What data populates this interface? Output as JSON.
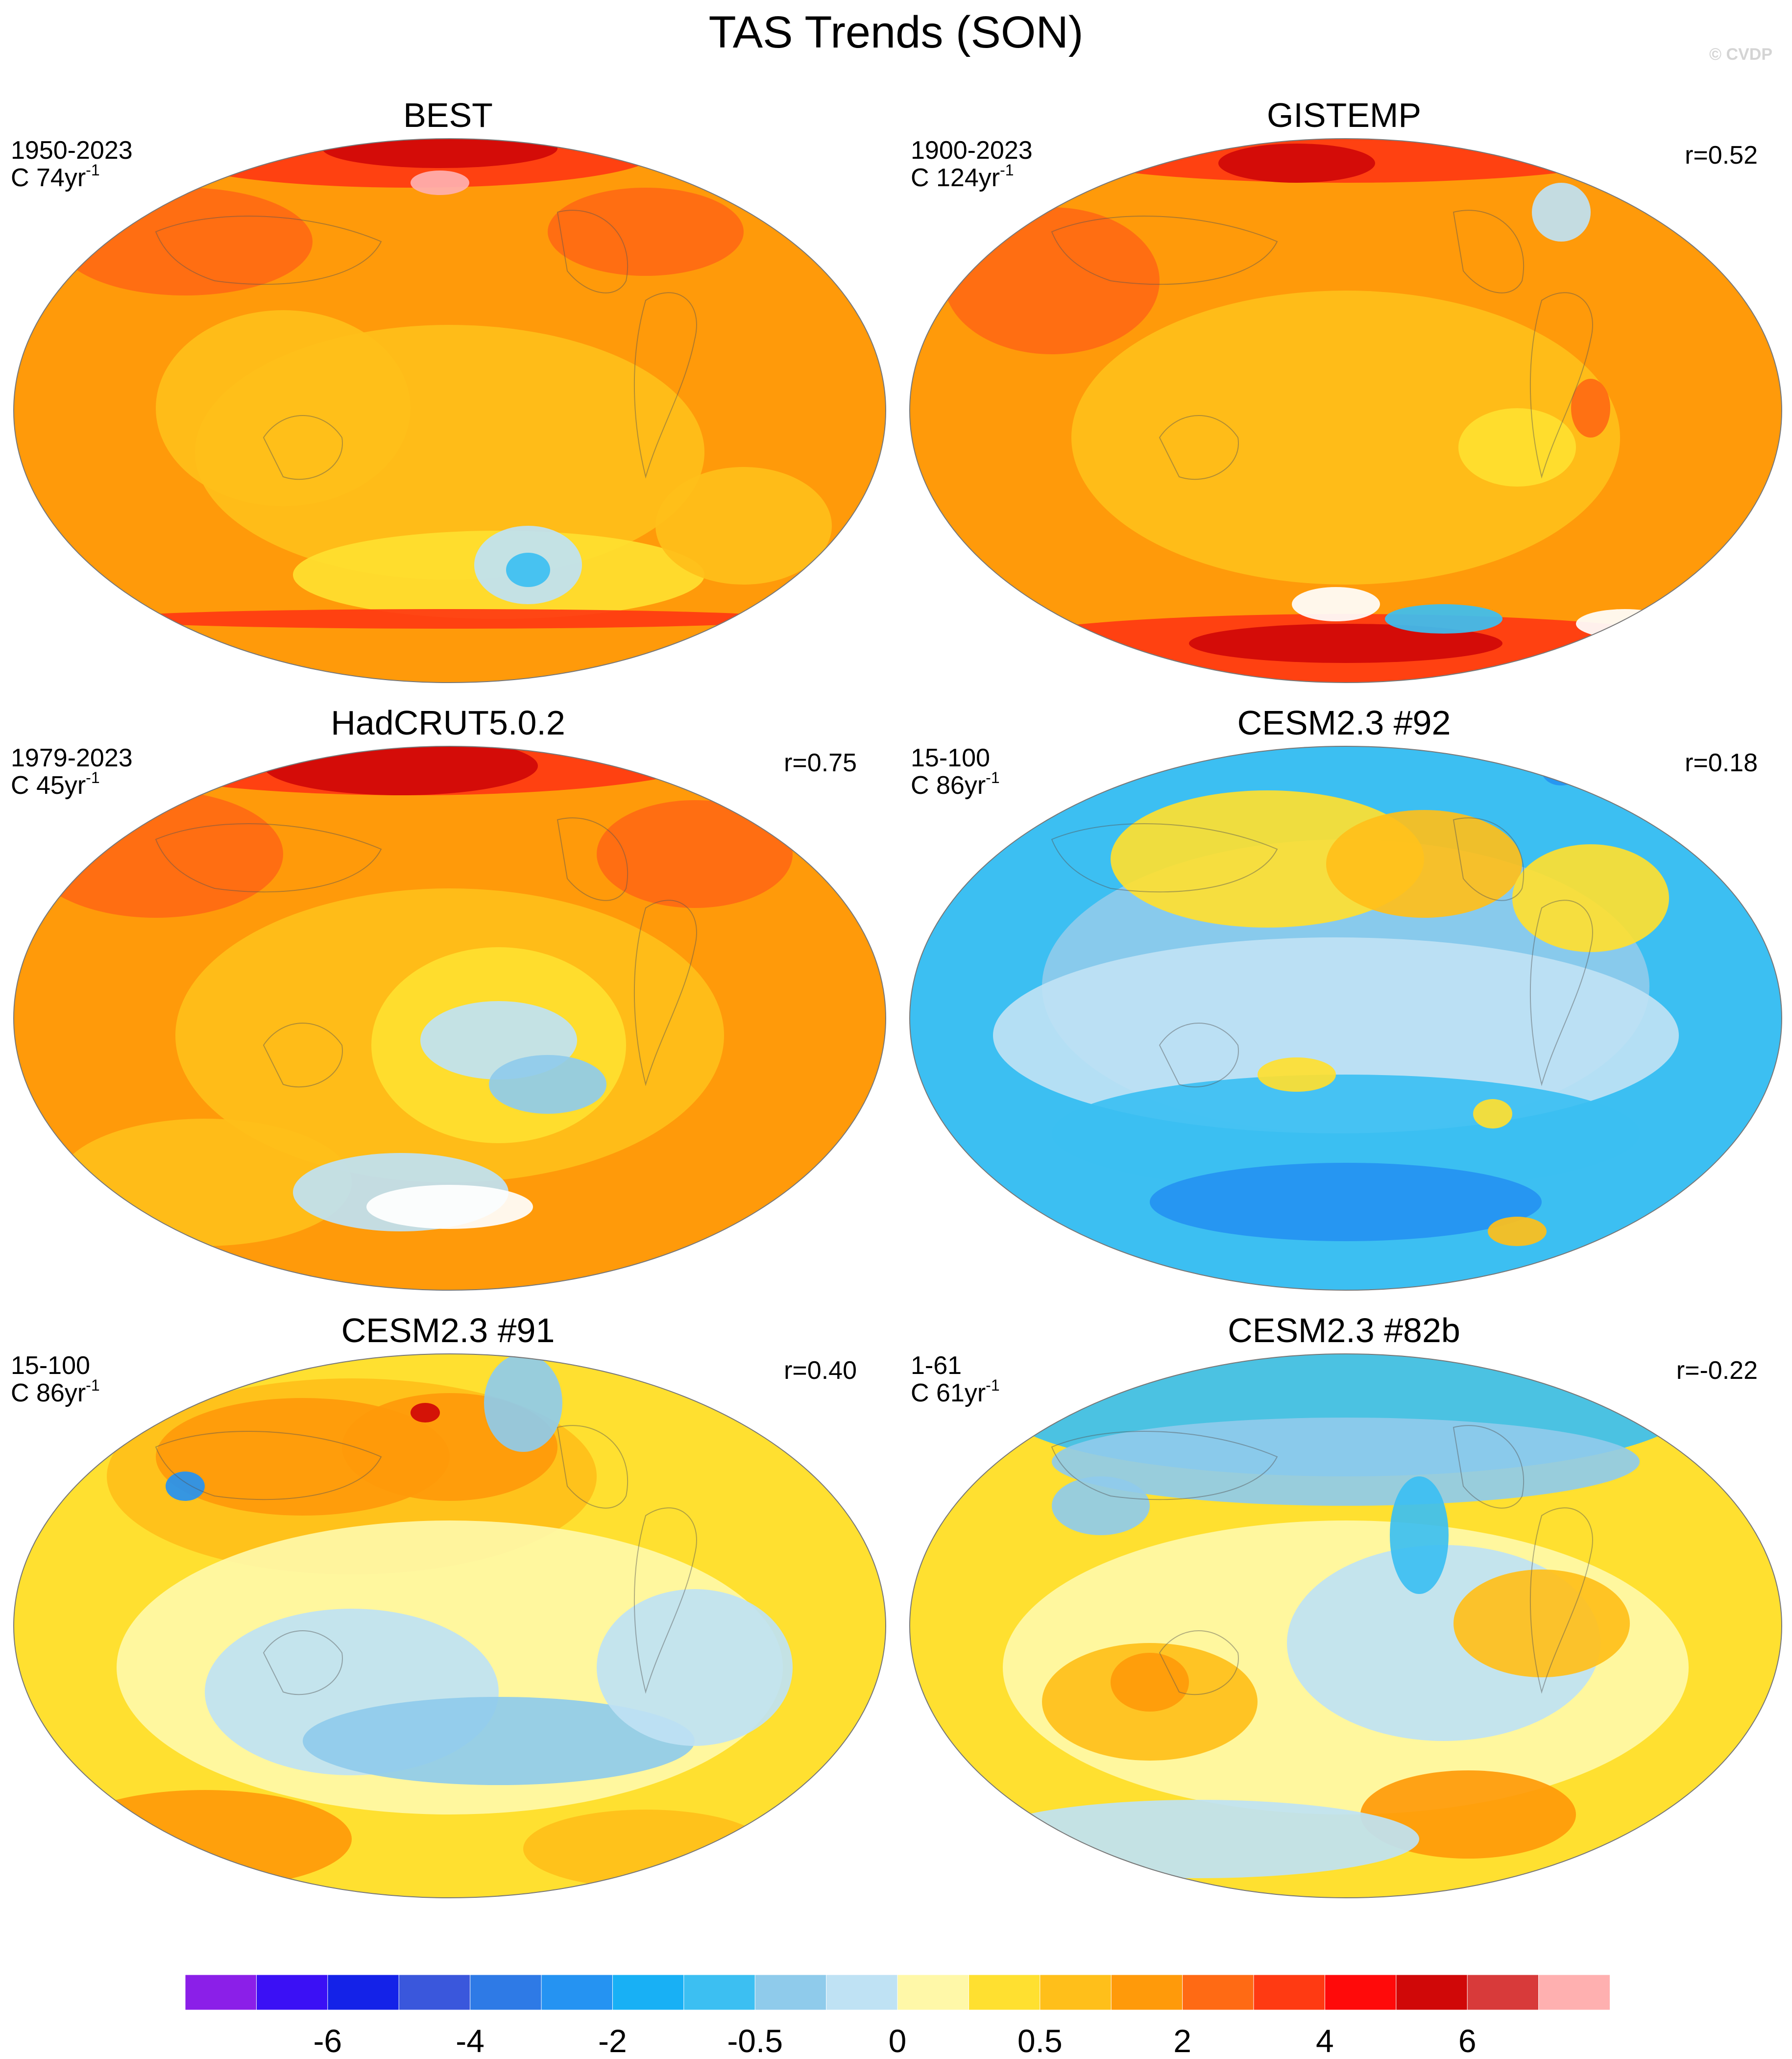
{
  "title": "TAS Trends (SON)",
  "copyright": "© CVDP",
  "panels": [
    {
      "title": "BEST",
      "period": "1950-2023",
      "units_prefix": "C 74yr",
      "units_exp": "-1",
      "corr": "",
      "scheme": "best"
    },
    {
      "title": "GISTEMP",
      "period": "1900-2023",
      "units_prefix": "C 124yr",
      "units_exp": "-1",
      "corr": "r=0.52",
      "scheme": "gistemp"
    },
    {
      "title": "HadCRUT5.0.2",
      "period": "1979-2023",
      "units_prefix": "C 45yr",
      "units_exp": "-1",
      "corr": "r=0.75",
      "scheme": "hadcrut"
    },
    {
      "title": "CESM2.3 #92",
      "period": "15-100",
      "units_prefix": "C 86yr",
      "units_exp": "-1",
      "corr": "r=0.18",
      "scheme": "cesm92"
    },
    {
      "title": "CESM2.3 #91",
      "period": "15-100",
      "units_prefix": "C 86yr",
      "units_exp": "-1",
      "corr": "r=0.40",
      "scheme": "cesm91"
    },
    {
      "title": "CESM2.3 #82b",
      "period": "1-61",
      "units_prefix": "C 61yr",
      "units_exp": "-1",
      "corr": "r=-0.22",
      "scheme": "cesm82b"
    }
  ],
  "colorbar": {
    "colors": [
      "#8b1fe8",
      "#3b10f5",
      "#1422e8",
      "#3a57dc",
      "#2e7ae6",
      "#2593f2",
      "#18b0f5",
      "#3cbff2",
      "#8fcbeb",
      "#bfe2f4",
      "#fff8a8",
      "#ffe030",
      "#ffbf1a",
      "#ff9a0a",
      "#ff6a14",
      "#ff3a12",
      "#ff0a0a",
      "#d00808",
      "#d83a3a",
      "#ffb0b0"
    ],
    "labels": [
      "-6",
      "-4",
      "-2",
      "-0.5",
      "0",
      "0.5",
      "2",
      "4",
      "6"
    ]
  }
}
